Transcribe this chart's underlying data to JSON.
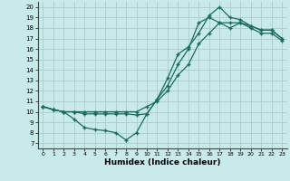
{
  "title": "",
  "xlabel": "Humidex (Indice chaleur)",
  "xlim": [
    -0.5,
    23.5
  ],
  "ylim": [
    6.5,
    20.5
  ],
  "xticks": [
    0,
    1,
    2,
    3,
    4,
    5,
    6,
    7,
    8,
    9,
    10,
    11,
    12,
    13,
    14,
    15,
    16,
    17,
    18,
    19,
    20,
    21,
    22,
    23
  ],
  "yticks": [
    7,
    8,
    9,
    10,
    11,
    12,
    13,
    14,
    15,
    16,
    17,
    18,
    19,
    20
  ],
  "bg_color": "#c8eaea",
  "grid_color": "#aacccc",
  "line_color": "#1a6b5a",
  "line1_x": [
    0,
    1,
    2,
    3,
    4,
    5,
    6,
    7,
    8,
    9,
    10,
    11,
    12,
    13,
    14,
    15,
    16,
    17,
    18,
    19,
    20,
    21,
    22,
    23
  ],
  "line1_y": [
    10.5,
    10.2,
    10.0,
    9.3,
    8.5,
    8.3,
    8.2,
    8.0,
    7.3,
    8.0,
    9.8,
    11.2,
    13.2,
    15.5,
    16.2,
    17.5,
    19.2,
    20.0,
    19.0,
    18.8,
    18.2,
    17.8,
    17.8,
    17.0
  ],
  "line2_x": [
    0,
    1,
    2,
    3,
    4,
    5,
    6,
    7,
    8,
    9,
    10,
    11,
    12,
    13,
    14,
    15,
    16,
    17,
    18,
    19,
    20,
    21,
    22,
    23
  ],
  "line2_y": [
    10.5,
    10.2,
    10.0,
    10.0,
    9.8,
    9.8,
    9.8,
    9.8,
    9.8,
    9.7,
    9.8,
    11.2,
    12.5,
    14.5,
    16.0,
    18.5,
    19.0,
    18.5,
    18.0,
    18.5,
    18.2,
    17.8,
    17.8,
    17.0
  ],
  "line3_x": [
    0,
    1,
    2,
    3,
    4,
    5,
    6,
    7,
    8,
    9,
    10,
    11,
    12,
    13,
    14,
    15,
    16,
    17,
    18,
    19,
    20,
    21,
    22,
    23
  ],
  "line3_y": [
    10.5,
    10.2,
    10.0,
    10.0,
    10.0,
    10.0,
    10.0,
    10.0,
    10.0,
    10.0,
    10.5,
    11.0,
    12.0,
    13.5,
    14.5,
    16.5,
    17.5,
    18.5,
    18.5,
    18.5,
    18.0,
    17.5,
    17.5,
    16.8
  ]
}
